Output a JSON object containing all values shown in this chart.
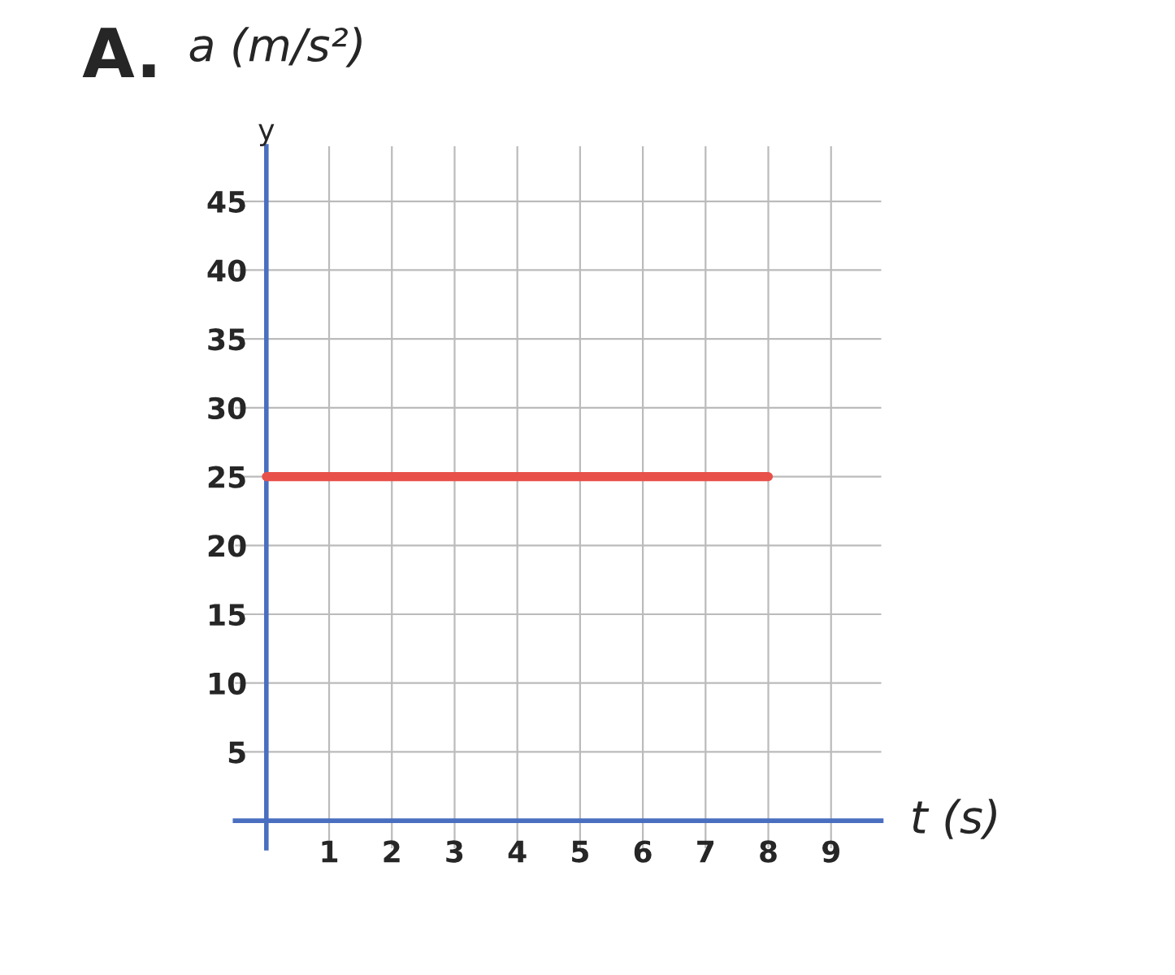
{
  "chart_data": {
    "type": "line",
    "title": "A.",
    "xlabel": "t (s)",
    "ylabel": "a (m/s²)",
    "annotations": [
      "y"
    ],
    "series": [
      {
        "color": "#e8504a",
        "x": [
          0,
          8
        ],
        "values": [
          25,
          25
        ]
      }
    ],
    "xlim": [
      -0.5,
      9.8
    ],
    "ylim": [
      -2,
      49
    ],
    "xticks": [
      1,
      2,
      3,
      4,
      5,
      6,
      7,
      8,
      9
    ],
    "yticks": [
      5,
      10,
      15,
      20,
      25,
      30,
      35,
      40,
      45
    ],
    "grid": true,
    "line_style": "solid",
    "marker": "none"
  }
}
